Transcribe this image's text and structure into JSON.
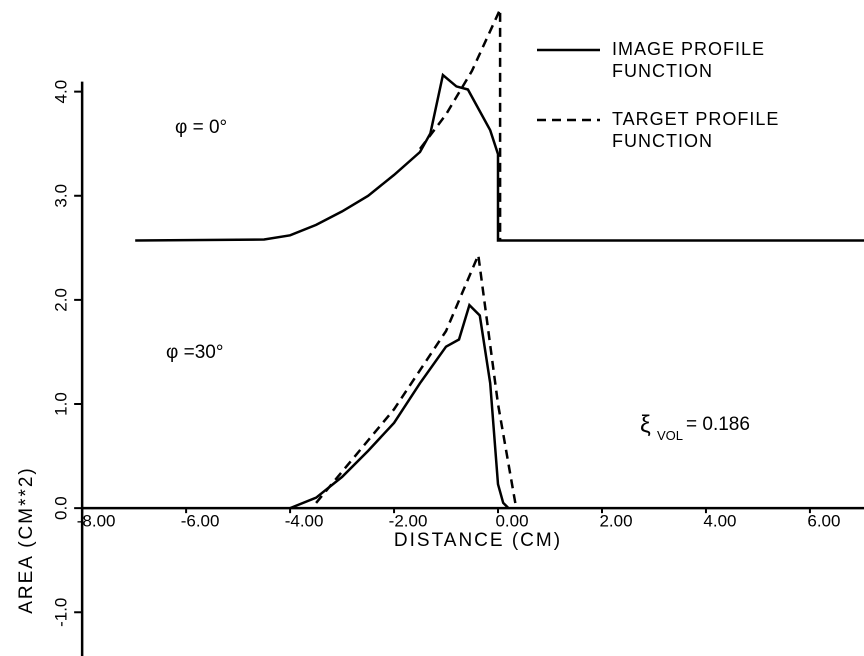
{
  "chart_data": {
    "type": "line",
    "x_label": "DISTANCE (CM)",
    "y_label": "AREA (CM**2)",
    "annotations": [
      "φ = 0°",
      "φ =30°",
      "ξ",
      "VOL",
      "= 0.186"
    ],
    "xlim": [
      -9.58,
      7.04
    ],
    "ylim": [
      -1.42,
      4.88
    ],
    "xticks": [
      {
        "value": -8,
        "label": "-8.00"
      },
      {
        "value": -6,
        "label": "-6.00"
      },
      {
        "value": -4,
        "label": "-4.00"
      },
      {
        "value": -2,
        "label": "-2.00"
      },
      {
        "value": 0,
        "label": "0.00"
      },
      {
        "value": 2,
        "label": "2.00"
      },
      {
        "value": 4,
        "label": "4.00"
      },
      {
        "value": 6,
        "label": "6.00"
      }
    ],
    "yticks": [
      {
        "value": -1,
        "label": "-1.0"
      },
      {
        "value": 0,
        "label": "0.0"
      },
      {
        "value": 1,
        "label": "1.0"
      },
      {
        "value": 2,
        "label": "2.0"
      },
      {
        "value": 3,
        "label": "3.0"
      },
      {
        "value": 4,
        "label": "4.0"
      }
    ],
    "series": [
      {
        "name": "IMAGE PROFILE FUNCTION",
        "color": "#000000",
        "dash": false,
        "x": [
          -6.98,
          -4.5,
          -4,
          -3.5,
          -3,
          -2.5,
          -2,
          -1.5,
          -1.3,
          -1.06,
          -0.8,
          -0.58,
          -0.15,
          0,
          0,
          7.04
        ],
        "values": [
          2.57,
          2.58,
          2.62,
          2.72,
          2.85,
          3.0,
          3.2,
          3.42,
          3.6,
          4.16,
          4.05,
          4.02,
          3.63,
          3.4,
          2.57,
          2.57
        ]
      },
      {
        "name": "TARGET PROFILE FUNCTION",
        "color": "#000000",
        "dash": true,
        "x": [
          -1.5,
          -1,
          -0.5,
          0.04,
          0.04
        ],
        "values": [
          3.45,
          3.78,
          4.2,
          4.79,
          2.57
        ]
      },
      {
        "color": "#000000",
        "dash": false,
        "x": [
          -4,
          -3.5,
          -3,
          -2.5,
          -2,
          -1.5,
          -1,
          -0.75,
          -0.55,
          -0.35,
          -0.15,
          0,
          0.1,
          0.2
        ],
        "values": [
          0,
          0.1,
          0.3,
          0.55,
          0.82,
          1.2,
          1.55,
          1.62,
          1.95,
          1.85,
          1.2,
          0.23,
          0.05,
          0
        ]
      },
      {
        "color": "#000000",
        "dash": true,
        "x": [
          -3.5,
          -2,
          -1,
          -0.38,
          0,
          0.35
        ],
        "values": [
          0.05,
          0.95,
          1.7,
          2.43,
          1.0,
          0
        ]
      }
    ]
  }
}
